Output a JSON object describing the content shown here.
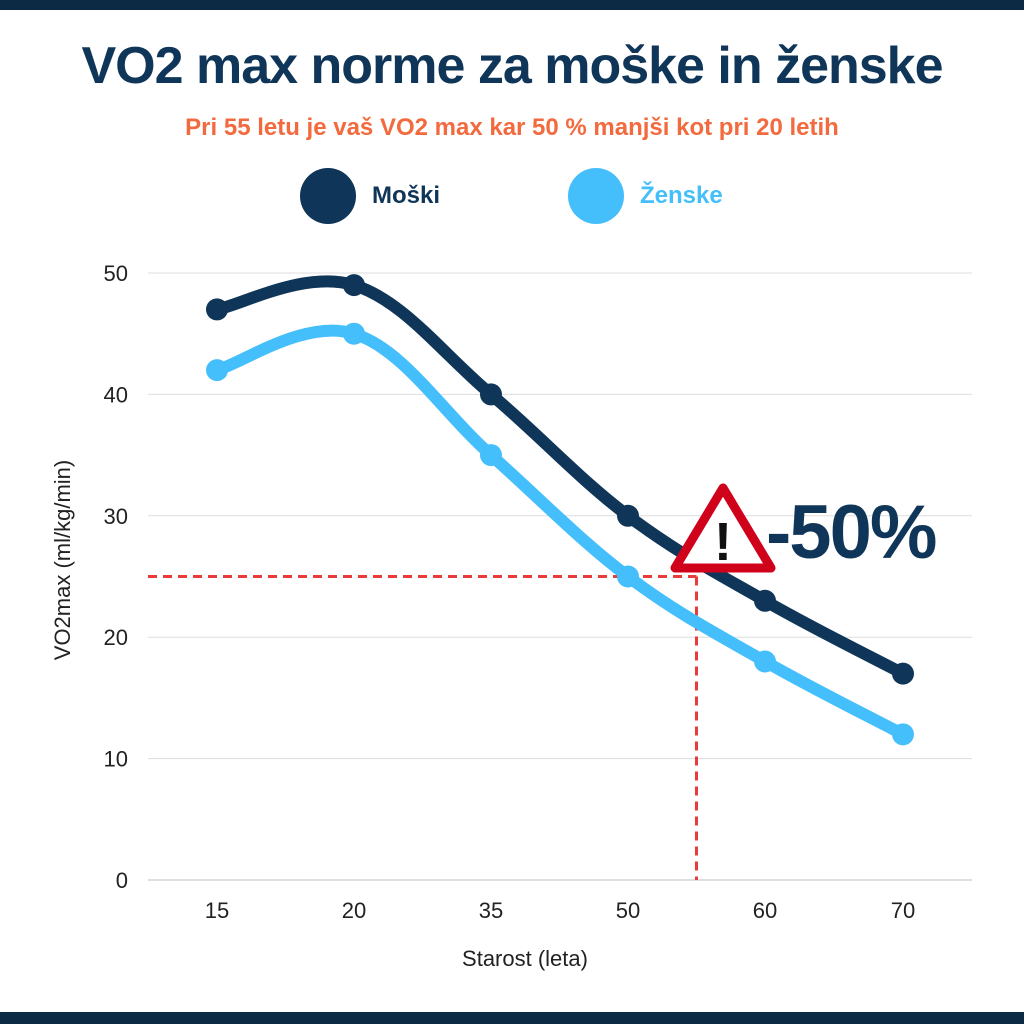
{
  "title": "VO2 max norme za moške in ženske",
  "subtitle": "Pri 55 letu je vaš VO2 max kar 50 % manjši kot pri 20 letih",
  "colors": {
    "men": "#0f3558",
    "women": "#45bffb",
    "accent": "#f26a3e",
    "guide": "#ea3b3b",
    "grid": "#dddddd"
  },
  "legend": [
    {
      "label": "Moški"
    },
    {
      "label": "Ženske"
    }
  ],
  "annotation": {
    "text": "-50%",
    "icon": "warning-triangle-icon",
    "marker_x_age": 55,
    "marker_y_value": 25
  },
  "chart_data": {
    "type": "line",
    "categories": [
      "15",
      "20",
      "35",
      "50",
      "60",
      "70"
    ],
    "series": [
      {
        "name": "Moški",
        "values": [
          47,
          49,
          40,
          30,
          23,
          17
        ]
      },
      {
        "name": "Ženske",
        "values": [
          42,
          45,
          35,
          25,
          18,
          12
        ]
      }
    ],
    "xlabel": "Starost (leta)",
    "ylabel": "VO2max (ml/kg/min)",
    "ylim": [
      0,
      50
    ],
    "yticks": [
      0,
      10,
      20,
      30,
      40,
      50
    ],
    "grid": true,
    "legend_position": "top"
  }
}
